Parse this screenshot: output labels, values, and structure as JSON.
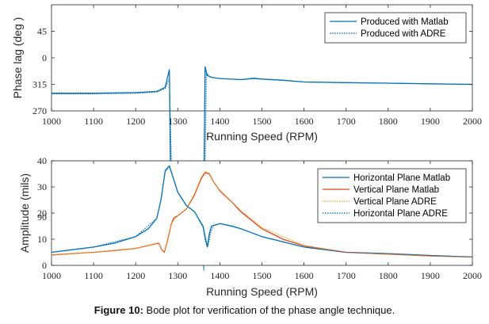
{
  "caption": {
    "label": "Figure 10:",
    "text": " Bode plot for verification of the phase angle technique."
  },
  "chart_data": [
    {
      "type": "line",
      "xlabel": "Running Speed (RPM)",
      "ylabel": "Phase lag (deg )",
      "xlim": [
        1000,
        2000
      ],
      "xticks": [
        1000,
        1100,
        1200,
        1300,
        1400,
        1500,
        1600,
        1700,
        1800,
        1900,
        2000
      ],
      "yticks": [
        270,
        315,
        0,
        45,
        90
      ],
      "ytick_labels": [
        "270",
        "315",
        "0",
        "45",
        "90"
      ],
      "ylim_unwrapped": [
        270,
        450
      ],
      "grid": false,
      "legend": "top-right",
      "series": [
        {
          "name": "Produced with Matlab",
          "color": "#0072BD",
          "style": "solid",
          "x": [
            1000,
            1100,
            1200,
            1250,
            1270,
            1280,
            1285,
            1290,
            1295,
            1300,
            1320,
            1340,
            1355,
            1360,
            1365,
            1370,
            1380,
            1400,
            1450,
            1480,
            1500,
            1550,
            1600,
            1700,
            1800,
            1900,
            2000
          ],
          "y": [
            -60,
            -60,
            -59,
            -57,
            -50,
            -20,
            20,
            45,
            52,
            52,
            50,
            48,
            40,
            10,
            -15,
            -30,
            -33,
            -35,
            -37,
            -35,
            -36,
            -38,
            -41,
            -42,
            -43,
            -44,
            -45
          ]
        },
        {
          "name": "Produced with ADRE",
          "color": "#0072BD",
          "style": "dotted",
          "x": [
            1000,
            1100,
            1200,
            1250,
            1270,
            1280,
            1290,
            1295,
            1300,
            1320,
            1340,
            1355,
            1362,
            1368,
            1375,
            1380,
            1400,
            1450,
            1480,
            1500,
            1550,
            1600,
            1700,
            1800,
            1900,
            2000
          ],
          "y": [
            -61,
            -61,
            -60,
            -58,
            -52,
            -35,
            30,
            48,
            53,
            51,
            49,
            44,
            0,
            -25,
            -31,
            -33,
            -35,
            -37,
            -34,
            -36,
            -38,
            -41,
            -42,
            -43,
            -44,
            -45
          ]
        }
      ]
    },
    {
      "type": "line",
      "xlabel": "Running Speed (RPM)",
      "ylabel": "Amplitude (mils)",
      "xlim": [
        1000,
        2000
      ],
      "ylim": [
        0,
        40
      ],
      "xticks": [
        1000,
        1100,
        1200,
        1300,
        1400,
        1500,
        1600,
        1700,
        1800,
        1900,
        2000
      ],
      "yticks": [
        0,
        10,
        20,
        30,
        40
      ],
      "grid": false,
      "legend": "top-right",
      "series": [
        {
          "name": "Horizontal Plane Matlab",
          "color": "#0072BD",
          "style": "solid",
          "x": [
            1000,
            1050,
            1100,
            1150,
            1200,
            1230,
            1250,
            1260,
            1270,
            1280,
            1290,
            1300,
            1320,
            1340,
            1360,
            1365,
            1370,
            1375,
            1380,
            1400,
            1430,
            1450,
            1500,
            1550,
            1600,
            1650,
            1700,
            1800,
            1900,
            2000
          ],
          "y": [
            5,
            6,
            7,
            8.5,
            11,
            14,
            18,
            25,
            36,
            38,
            33,
            28,
            23,
            20.5,
            15,
            11,
            7,
            12,
            15,
            16,
            15,
            14,
            11,
            9,
            7,
            6,
            5,
            4.5,
            3.8,
            3.2
          ]
        },
        {
          "name": "Vertical Plane Matlab",
          "color": "#E8401C",
          "style": "solid",
          "x": [
            1000,
            1050,
            1100,
            1150,
            1200,
            1240,
            1255,
            1262,
            1268,
            1275,
            1285,
            1290,
            1300,
            1320,
            1340,
            1355,
            1365,
            1375,
            1385,
            1400,
            1430,
            1450,
            1500,
            1550,
            1600,
            1700,
            1800,
            1900,
            2000
          ],
          "y": [
            4,
            4.5,
            5,
            5.7,
            6.5,
            8,
            8.5,
            6,
            5,
            9,
            16,
            18,
            19,
            21.5,
            27,
            33,
            35.5,
            35,
            32,
            28.5,
            24,
            20.5,
            14,
            10,
            7.5,
            5,
            4.3,
            3.6,
            3.2
          ]
        },
        {
          "name": "Vertical Plane ADRE",
          "color": "#EDB120",
          "style": "dotted",
          "x": [
            1000,
            1100,
            1200,
            1240,
            1255,
            1262,
            1268,
            1275,
            1285,
            1300,
            1320,
            1340,
            1355,
            1365,
            1375,
            1385,
            1400,
            1450,
            1500,
            1600,
            1700,
            1800,
            1900,
            2000
          ],
          "y": [
            4,
            5,
            6.5,
            8,
            8.3,
            6,
            5.2,
            9,
            16,
            19,
            21.5,
            27.5,
            33.5,
            36,
            35.2,
            32,
            28.8,
            21,
            14.5,
            7.6,
            5,
            4.3,
            3.6,
            3.2
          ]
        },
        {
          "name": "Horizontal Plane ADRE",
          "color": "#0072BD",
          "style": "dotted",
          "x": [
            1000,
            1100,
            1200,
            1250,
            1260,
            1270,
            1280,
            1290,
            1300,
            1320,
            1340,
            1360,
            1366,
            1372,
            1378,
            1385,
            1400,
            1450,
            1500,
            1600,
            1700,
            1800,
            1900,
            2000
          ],
          "y": [
            5,
            7,
            11,
            18,
            25,
            36.5,
            38.2,
            33,
            28,
            23,
            20.5,
            14.5,
            9,
            7.5,
            12.5,
            15.2,
            16,
            14,
            11,
            7,
            5,
            4.5,
            3.8,
            3.2
          ]
        }
      ]
    }
  ]
}
